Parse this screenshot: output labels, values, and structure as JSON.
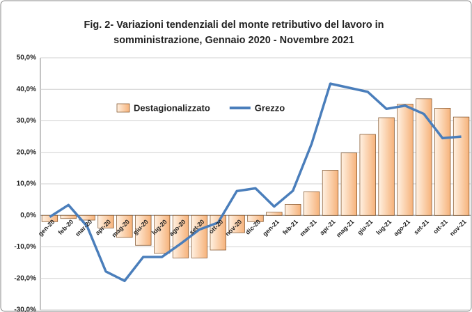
{
  "chart_data": {
    "type": "bar_line",
    "title": [
      "Fig. 2- Variazioni tendenziali del monte retributivo del lavoro in",
      "somministrazione, Gennaio 2020 - Novembre 2021"
    ],
    "categories": [
      "gen-20",
      "feb-20",
      "mar-20",
      "apr-20",
      "mag-20",
      "giu-20",
      "lug-20",
      "ago-20",
      "set-20",
      "ott-20",
      "nov-20",
      "dic-20",
      "gen-21",
      "feb-21",
      "mar-21",
      "apr-21",
      "mag-21",
      "giu-21",
      "lug-21",
      "ago-21",
      "set-21",
      "ott-21",
      "nov-21"
    ],
    "series": [
      {
        "name": "Destagionalizzato",
        "type": "bar",
        "color": "#f6b27a",
        "values": [
          -2.0,
          -1.0,
          -1.5,
          -4.0,
          -7.0,
          -9.5,
          -12.0,
          -13.5,
          -13.5,
          -11.0,
          -5.5,
          -2.0,
          1.0,
          3.5,
          7.5,
          14.3,
          19.8,
          25.7,
          31.0,
          35.3,
          37.0,
          34.0,
          31.2
        ]
      },
      {
        "name": "Grezzo",
        "type": "line",
        "color": "#4a7ebb",
        "values": [
          -0.5,
          3.3,
          -3.5,
          -17.8,
          -20.8,
          -13.2,
          -13.2,
          -9.0,
          -4.5,
          -2.3,
          7.7,
          8.6,
          2.8,
          7.8,
          22.7,
          41.8,
          40.5,
          39.2,
          33.8,
          34.8,
          32.2,
          24.5,
          25.0
        ]
      }
    ],
    "ylim": [
      -30,
      50
    ],
    "yticks": [
      {
        "value": -30,
        "label": "-30,0%"
      },
      {
        "value": -20,
        "label": "-20,0%"
      },
      {
        "value": -10,
        "label": "-10,0%"
      },
      {
        "value": 0,
        "label": "0,0%"
      },
      {
        "value": 10,
        "label": "10,0%"
      },
      {
        "value": 20,
        "label": "20,0%"
      },
      {
        "value": 30,
        "label": "30,0%"
      },
      {
        "value": 40,
        "label": "40,0%"
      },
      {
        "value": 50,
        "label": "50,0%"
      }
    ],
    "grid": true
  }
}
